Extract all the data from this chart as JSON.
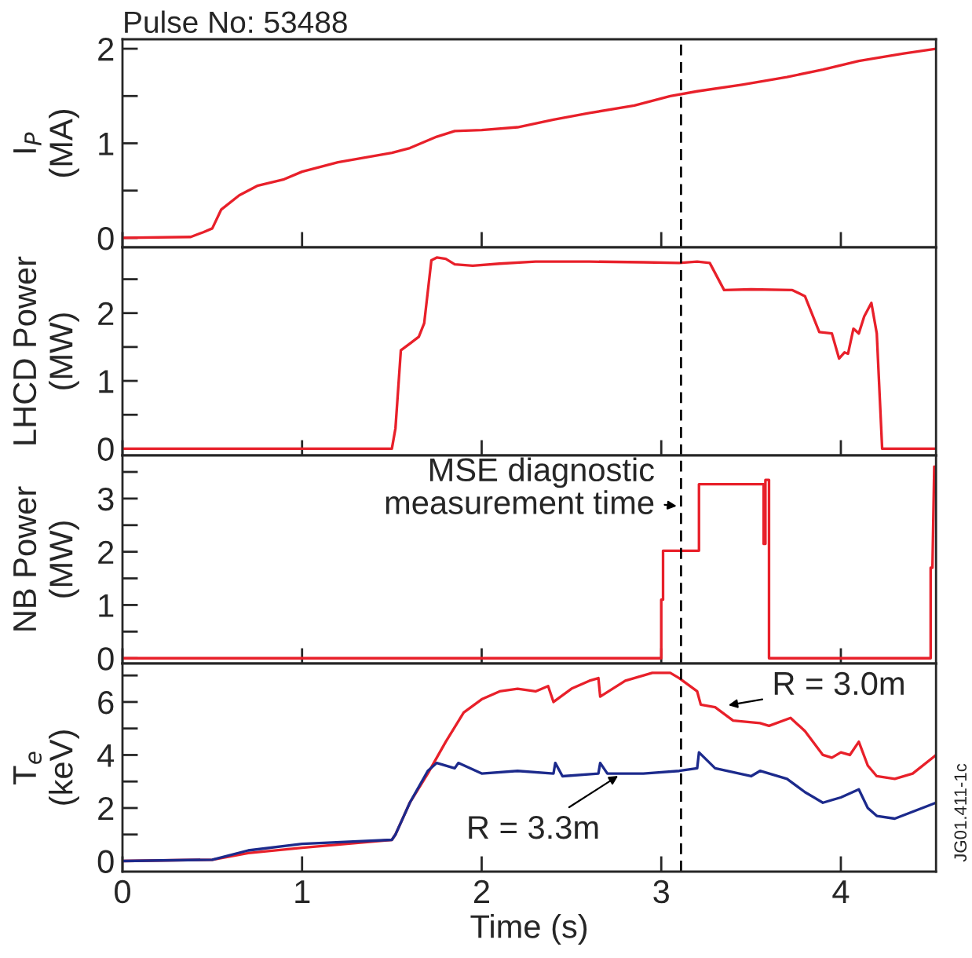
{
  "chart_data": [
    {
      "type": "line",
      "title": "Pulse No: 53488",
      "ylabel": "I$_{P}$\n(MA)",
      "xlim": [
        0,
        4.53
      ],
      "xticks": [
        {
          "value": 0,
          "label": null
        },
        {
          "value": 1,
          "label": null
        },
        {
          "value": 2,
          "label": null
        },
        {
          "value": 3,
          "label": null
        },
        {
          "value": 4,
          "label": null
        }
      ],
      "ylim": [
        -0.1,
        2.1
      ],
      "yticks": [
        0,
        {
          "value": 0.5,
          "label": null
        },
        1,
        {
          "value": 1.5,
          "label": null
        },
        2
      ],
      "tick_labels": "y",
      "grid": false,
      "legend": false,
      "ref_lines": [
        {
          "axis": "x",
          "value": 3.11,
          "color": "#000000",
          "line_style": "dashed"
        }
      ],
      "series": [
        {
          "color": "#e8202a",
          "x": [
            0,
            0.38,
            0.45,
            0.5,
            0.55,
            0.65,
            0.75,
            0.9,
            1.0,
            1.2,
            1.35,
            1.5,
            1.6,
            1.75,
            1.85,
            2.0,
            2.2,
            2.4,
            2.6,
            2.85,
            3.05,
            3.2,
            3.45,
            3.7,
            3.9,
            4.1,
            4.35,
            4.53
          ],
          "values": [
            0,
            0.01,
            0.06,
            0.1,
            0.3,
            0.45,
            0.55,
            0.62,
            0.7,
            0.8,
            0.85,
            0.9,
            0.95,
            1.07,
            1.13,
            1.14,
            1.17,
            1.25,
            1.32,
            1.4,
            1.5,
            1.55,
            1.62,
            1.7,
            1.78,
            1.87,
            1.95,
            2.0
          ]
        }
      ]
    },
    {
      "type": "line",
      "ylabel": "LHCD Power\n(MW)",
      "xlim": [
        0,
        4.53
      ],
      "xticks": [
        {
          "value": 0,
          "label": null
        },
        {
          "value": 1,
          "label": null
        },
        {
          "value": 2,
          "label": null
        },
        {
          "value": 3,
          "label": null
        },
        {
          "value": 4,
          "label": null
        }
      ],
      "ylim": [
        -0.1,
        2.97
      ],
      "yticks": [
        0,
        {
          "value": 0.5,
          "label": null
        },
        1,
        {
          "value": 1.5,
          "label": null
        },
        2,
        {
          "value": 2.5,
          "label": null
        }
      ],
      "tick_labels": "y",
      "grid": false,
      "legend": false,
      "ref_lines": [
        {
          "axis": "x",
          "value": 3.11,
          "color": "#000000",
          "line_style": "dashed"
        }
      ],
      "series": [
        {
          "color": "#e8202a",
          "x": [
            0,
            1.5,
            1.52,
            1.55,
            1.6,
            1.65,
            1.68,
            1.72,
            1.75,
            1.8,
            1.85,
            1.95,
            2.1,
            2.3,
            2.6,
            2.9,
            3.1,
            3.2,
            3.27,
            3.35,
            3.5,
            3.73,
            3.8,
            3.88,
            3.95,
            3.99,
            4.02,
            4.04,
            4.07,
            4.1,
            4.13,
            4.17,
            4.2,
            4.23,
            4.53
          ],
          "values": [
            0,
            0,
            0.3,
            1.45,
            1.55,
            1.65,
            1.85,
            2.78,
            2.82,
            2.8,
            2.72,
            2.7,
            2.73,
            2.76,
            2.76,
            2.75,
            2.74,
            2.76,
            2.74,
            2.34,
            2.35,
            2.34,
            2.25,
            1.72,
            1.7,
            1.33,
            1.42,
            1.4,
            1.77,
            1.7,
            1.95,
            2.15,
            1.7,
            0,
            0
          ]
        }
      ]
    },
    {
      "type": "line",
      "ylabel": "NB Power\n(MW)",
      "xlim": [
        0,
        4.53
      ],
      "xticks": [
        {
          "value": 0,
          "label": null
        },
        {
          "value": 1,
          "label": null
        },
        {
          "value": 2,
          "label": null
        },
        {
          "value": 3,
          "label": null
        },
        {
          "value": 4,
          "label": null
        }
      ],
      "ylim": [
        -0.1,
        3.81
      ],
      "yticks": [
        0,
        {
          "value": 0.5,
          "label": null
        },
        1,
        {
          "value": 1.5,
          "label": null
        },
        2,
        {
          "value": 2.5,
          "label": null
        },
        3,
        {
          "value": 3.5,
          "label": null
        }
      ],
      "tick_labels": "y",
      "grid": false,
      "legend": false,
      "ref_lines": [
        {
          "axis": "x",
          "value": 3.11,
          "color": "#000000",
          "line_style": "dashed"
        }
      ],
      "annotations": [
        {
          "text": "MSE diagnostic\nmeasurement time",
          "x": 3.11,
          "y": 2.85
        }
      ],
      "series": [
        {
          "color": "#e8202a",
          "x": [
            0,
            3.0,
            3.0,
            3.01,
            3.01,
            3.21,
            3.21,
            3.57,
            3.57,
            3.58,
            3.58,
            3.59,
            3.6,
            3.6,
            4.5,
            4.5,
            4.51,
            4.52
          ],
          "values": [
            0,
            0,
            1.1,
            1.1,
            2.02,
            2.02,
            3.27,
            3.27,
            2.15,
            2.15,
            3.35,
            3.35,
            3.35,
            0,
            0,
            1.7,
            1.7,
            3.6
          ]
        }
      ]
    },
    {
      "type": "line",
      "ylabel": "T$_{e}$\n(keV)",
      "xlabel": "Time (s)",
      "xlim": [
        0,
        4.53
      ],
      "xticks": [
        0,
        1,
        2,
        3,
        4
      ],
      "ylim": [
        -0.4,
        7.45
      ],
      "yticks": [
        0,
        {
          "value": 1,
          "label": null
        },
        2,
        {
          "value": 3,
          "label": null
        },
        4,
        {
          "value": 5,
          "label": null
        },
        6,
        {
          "value": 7,
          "label": null
        }
      ],
      "grid": false,
      "legend": false,
      "ref_lines": [
        {
          "axis": "x",
          "value": 3.11,
          "color": "#000000",
          "line_style": "dashed"
        }
      ],
      "annotations": [
        {
          "text": "R = 3.0m",
          "x": 3.35,
          "y": 5.85
        },
        {
          "text": "R = 3.3m",
          "x": 2.78,
          "y": 3.3
        },
        "JG01.411-1c"
      ],
      "series": [
        {
          "color": "#e8202a",
          "x": [
            0,
            0.5,
            0.7,
            1.0,
            1.5,
            1.52,
            1.6,
            1.7,
            1.8,
            1.9,
            2.0,
            2.1,
            2.2,
            2.3,
            2.37,
            2.4,
            2.5,
            2.6,
            2.65,
            2.66,
            2.8,
            2.95,
            3.0,
            3.05,
            3.1,
            3.2,
            3.22,
            3.3,
            3.4,
            3.55,
            3.6,
            3.72,
            3.8,
            3.9,
            3.95,
            4.0,
            4.05,
            4.1,
            4.15,
            4.2,
            4.3,
            4.4,
            4.53
          ],
          "values": [
            0,
            0.05,
            0.3,
            0.5,
            0.8,
            1.0,
            2.2,
            3.3,
            4.5,
            5.6,
            6.1,
            6.4,
            6.5,
            6.4,
            6.6,
            6.0,
            6.5,
            6.8,
            6.9,
            6.2,
            6.8,
            7.1,
            7.1,
            7.1,
            6.9,
            6.4,
            5.9,
            5.8,
            5.3,
            5.2,
            5.1,
            5.4,
            4.9,
            4.0,
            3.9,
            4.1,
            4.0,
            4.5,
            3.6,
            3.2,
            3.1,
            3.3,
            4.0
          ]
        },
        {
          "color": "#1c2a8c",
          "x": [
            0,
            0.5,
            0.7,
            1.0,
            1.5,
            1.52,
            1.6,
            1.7,
            1.75,
            1.85,
            1.87,
            2.0,
            2.2,
            2.4,
            2.41,
            2.45,
            2.65,
            2.66,
            2.7,
            2.9,
            3.1,
            3.2,
            3.21,
            3.3,
            3.5,
            3.55,
            3.7,
            3.8,
            3.9,
            4.0,
            4.1,
            4.15,
            4.2,
            4.3,
            4.53
          ],
          "values": [
            0,
            0.05,
            0.4,
            0.65,
            0.8,
            1.0,
            2.2,
            3.4,
            3.7,
            3.5,
            3.7,
            3.3,
            3.4,
            3.3,
            3.7,
            3.2,
            3.3,
            3.7,
            3.3,
            3.3,
            3.4,
            3.5,
            4.1,
            3.5,
            3.2,
            3.4,
            3.1,
            2.6,
            2.2,
            2.4,
            2.7,
            2.0,
            1.7,
            1.6,
            2.2
          ]
        }
      ]
    }
  ]
}
